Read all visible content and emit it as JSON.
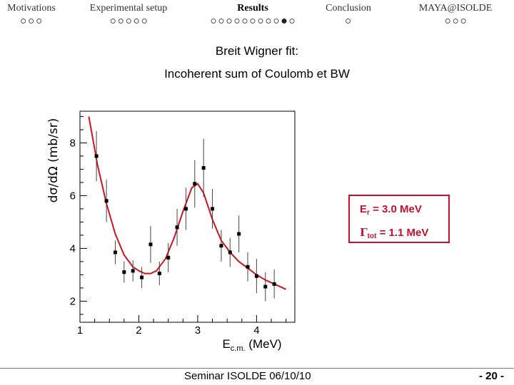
{
  "nav": {
    "sections": [
      {
        "label": "Motivations",
        "dots": 3,
        "filled_index": -1,
        "active": false
      },
      {
        "label": "Experimental setup",
        "dots": 5,
        "filled_index": -1,
        "active": false
      },
      {
        "label": "Results",
        "dots": 11,
        "filled_index": 9,
        "active": true
      },
      {
        "label": "Conclusion",
        "dots": 1,
        "filled_index": -1,
        "active": false
      },
      {
        "label": "MAYA@ISOLDE",
        "dots": 3,
        "filled_index": -1,
        "active": false
      }
    ]
  },
  "slide": {
    "title": "Breit Wigner fit:",
    "subtitle": "Incoherent sum of Coulomb et BW"
  },
  "result_box": {
    "er_symbol": "E",
    "er_sub": "r",
    "er_value": " = 3.0 MeV",
    "gamma_symbol": "Γ",
    "gamma_sub": "tot",
    "gamma_value": " = 1.1 MeV",
    "color": "#c8102e"
  },
  "footer": {
    "center": "Seminar ISOLDE 06/10/10",
    "page": "- 20 -"
  },
  "chart_data": {
    "type": "scatter",
    "xlabel": "E_c.m. (MeV)",
    "ylabel": "dσ/dΩ (mb/sr)",
    "xlim": [
      1.0,
      4.65
    ],
    "ylim": [
      1.2,
      9.2
    ],
    "xticks": [
      1,
      2,
      3,
      4
    ],
    "yticks": [
      2,
      4,
      6,
      8
    ],
    "grid": false,
    "legend": "none",
    "points": [
      {
        "x": 1.28,
        "y": 7.5,
        "err": 0.95
      },
      {
        "x": 1.45,
        "y": 5.8,
        "err": 0.8
      },
      {
        "x": 1.6,
        "y": 3.85,
        "err": 0.45
      },
      {
        "x": 1.75,
        "y": 3.1,
        "err": 0.4
      },
      {
        "x": 1.9,
        "y": 3.15,
        "err": 0.4
      },
      {
        "x": 2.05,
        "y": 2.9,
        "err": 0.4
      },
      {
        "x": 2.2,
        "y": 4.15,
        "err": 0.7
      },
      {
        "x": 2.35,
        "y": 3.05,
        "err": 0.45
      },
      {
        "x": 2.5,
        "y": 3.65,
        "err": 0.55
      },
      {
        "x": 2.65,
        "y": 4.8,
        "err": 0.7
      },
      {
        "x": 2.8,
        "y": 5.5,
        "err": 0.8
      },
      {
        "x": 2.95,
        "y": 6.45,
        "err": 0.9
      },
      {
        "x": 3.1,
        "y": 7.05,
        "err": 1.1
      },
      {
        "x": 3.25,
        "y": 5.5,
        "err": 0.75
      },
      {
        "x": 3.4,
        "y": 4.1,
        "err": 0.6
      },
      {
        "x": 3.55,
        "y": 3.85,
        "err": 0.55
      },
      {
        "x": 3.7,
        "y": 4.55,
        "err": 0.7
      },
      {
        "x": 3.85,
        "y": 3.3,
        "err": 0.55
      },
      {
        "x": 4.0,
        "y": 2.95,
        "err": 0.65
      },
      {
        "x": 4.15,
        "y": 2.55,
        "err": 0.55
      },
      {
        "x": 4.3,
        "y": 2.65,
        "err": 0.55
      }
    ],
    "fit_curve": {
      "color": "#d0141f",
      "x": [
        1.15,
        1.3,
        1.45,
        1.6,
        1.75,
        1.9,
        2.0,
        2.1,
        2.2,
        2.3,
        2.45,
        2.6,
        2.75,
        2.9,
        3.0,
        3.1,
        3.25,
        3.4,
        3.55,
        3.7,
        3.85,
        4.0,
        4.15,
        4.3,
        4.5
      ],
      "y": [
        9.0,
        7.15,
        5.7,
        4.55,
        3.75,
        3.3,
        3.15,
        3.05,
        3.05,
        3.15,
        3.6,
        4.4,
        5.4,
        6.3,
        6.45,
        6.1,
        5.1,
        4.3,
        3.85,
        3.5,
        3.25,
        3.0,
        2.8,
        2.65,
        2.45
      ]
    }
  }
}
